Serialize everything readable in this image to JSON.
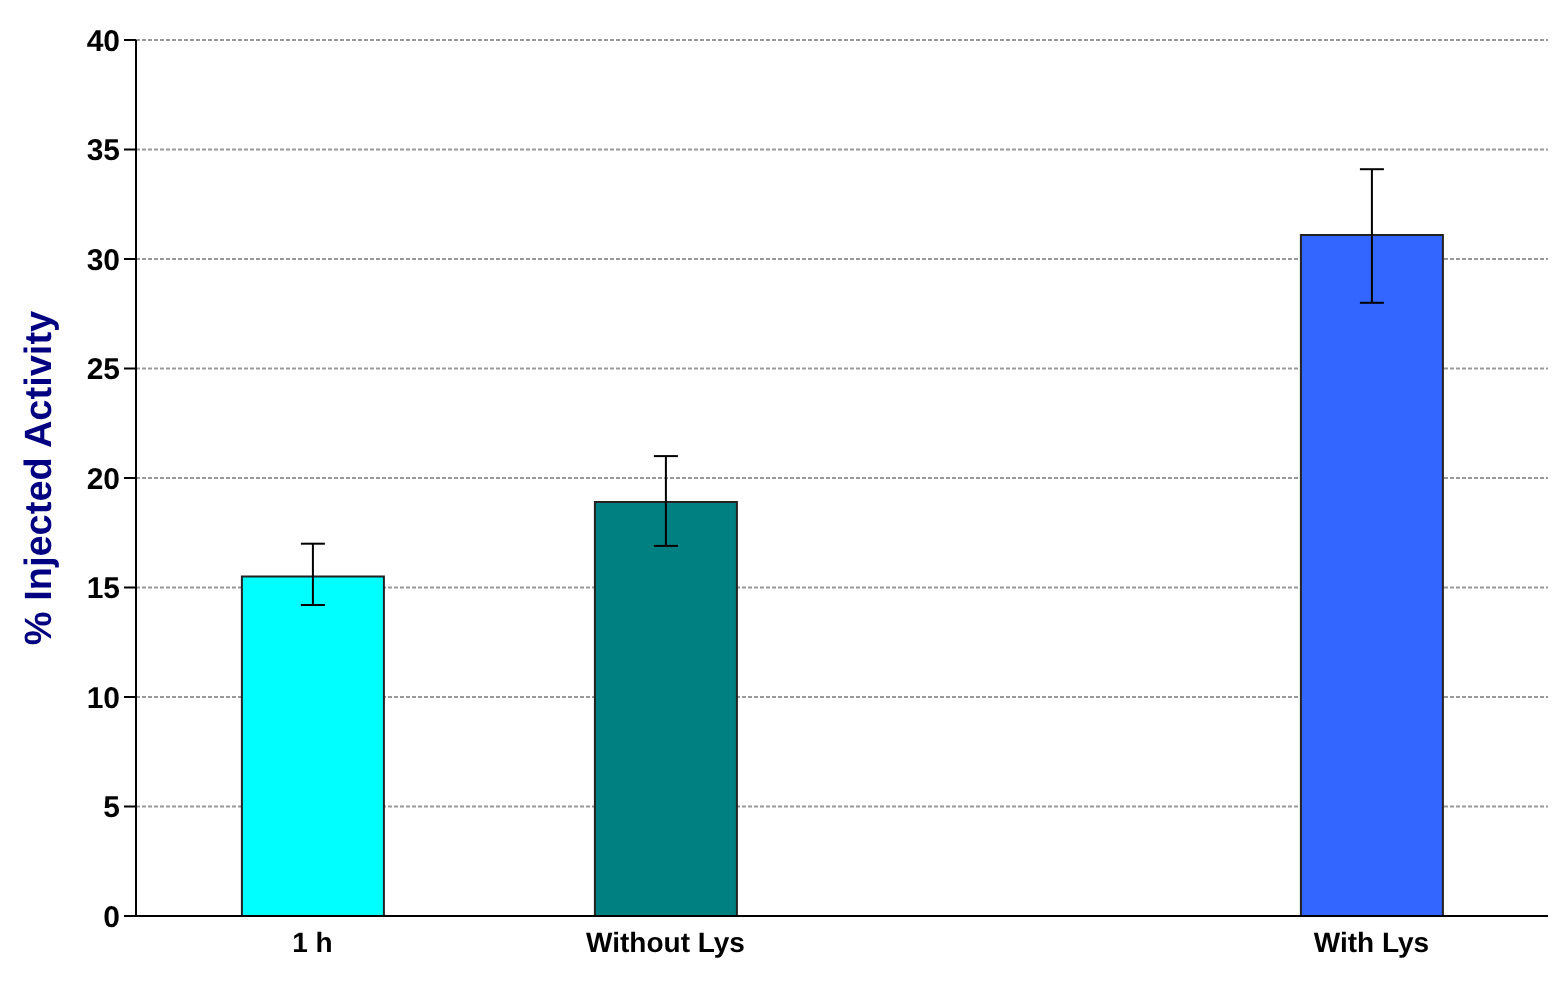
{
  "chart_data": {
    "type": "bar",
    "ylabel": "% Injected Activity",
    "categories": [
      "1 h",
      "Without Lys",
      null,
      "With Lys"
    ],
    "values": [
      15.5,
      18.9,
      null,
      31.1
    ],
    "colors": [
      "#00ffff",
      "#008080",
      "#ffffff",
      "#3366ff"
    ],
    "errors": [
      [
        14.2,
        17.0
      ],
      [
        16.9,
        21.0
      ],
      null,
      [
        28.0,
        34.1
      ]
    ],
    "ylim": [
      0,
      40
    ],
    "yticks": [
      0,
      5,
      10,
      15,
      20,
      25,
      30,
      35,
      40
    ],
    "grid": "y"
  }
}
